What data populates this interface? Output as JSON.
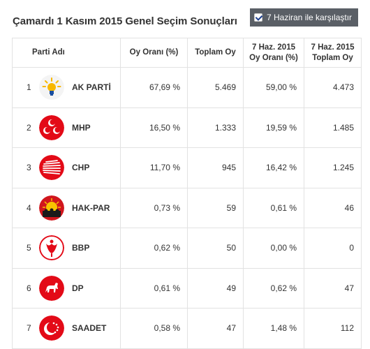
{
  "header": {
    "title": "Çamardı 1 Kasım 2015 Genel Seçim Sonuçları",
    "compare_label": "7 Haziran ile karşılaştır",
    "compare_checked": true
  },
  "table": {
    "columns": {
      "party": "Parti Adı",
      "vote_rate": "Oy Oranı (%)",
      "total_votes": "Toplam Oy",
      "june_rate_l1": "7 Haz. 2015",
      "june_rate_l2": "Oy Oranı (%)",
      "june_total_l1": "7 Haz. 2015",
      "june_total_l2": "Toplam Oy"
    },
    "rows": [
      {
        "rank": "1",
        "party": "AK PARTİ",
        "logo": "akp-lightbulb-icon",
        "vote_rate": "67,69 %",
        "total_votes": "5.469",
        "june_rate": "59,00 %",
        "june_total": "4.473"
      },
      {
        "rank": "2",
        "party": "MHP",
        "logo": "mhp-crescents-icon",
        "vote_rate": "16,50 %",
        "total_votes": "1.333",
        "june_rate": "19,59 %",
        "june_total": "1.485"
      },
      {
        "rank": "3",
        "party": "CHP",
        "logo": "chp-six-arrows-icon",
        "vote_rate": "11,70 %",
        "total_votes": "945",
        "june_rate": "16,42 %",
        "june_total": "1.245"
      },
      {
        "rank": "4",
        "party": "HAK-PAR",
        "logo": "hakpar-sun-icon",
        "vote_rate": "0,73 %",
        "total_votes": "59",
        "june_rate": "0,61 %",
        "june_total": "46"
      },
      {
        "rank": "5",
        "party": "BBP",
        "logo": "bbp-tulip-icon",
        "vote_rate": "0,62 %",
        "total_votes": "50",
        "june_rate": "0,00 %",
        "june_total": "0"
      },
      {
        "rank": "6",
        "party": "DP",
        "logo": "dp-horse-icon",
        "vote_rate": "0,61 %",
        "total_votes": "49",
        "june_rate": "0,62 %",
        "june_total": "47"
      },
      {
        "rank": "7",
        "party": "SAADET",
        "logo": "saadet-crescent-stars-icon",
        "vote_rate": "0,58 %",
        "total_votes": "47",
        "june_rate": "1,48 %",
        "june_total": "112"
      }
    ]
  },
  "colors": {
    "button_bg": "#5a5f66",
    "border": "#e2e2e2",
    "akp_yellow": "#f8b800",
    "party_red": "#e30a17"
  }
}
